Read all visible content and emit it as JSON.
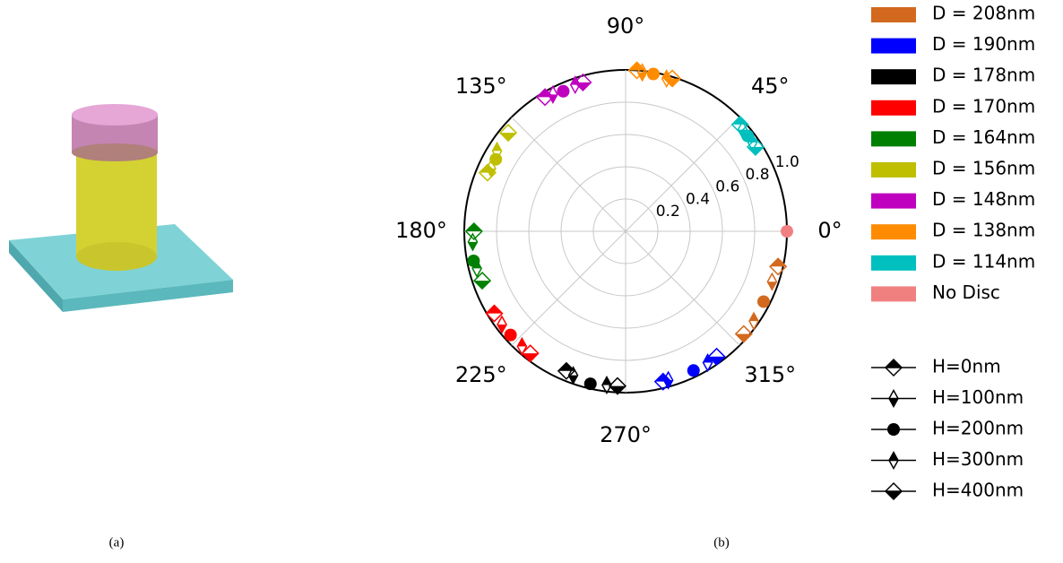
{
  "captions": {
    "a": "(a)",
    "b": "(b)"
  },
  "chart_data": {
    "type": "polar-scatter",
    "rlim": [
      0,
      1
    ],
    "rticks": [
      0.2,
      0.4,
      0.6,
      0.8,
      {
        "value": 1,
        "label": "1.0"
      }
    ],
    "thetaticks": [
      {
        "value": 0,
        "label": "0°"
      },
      {
        "value": 45,
        "label": "45°"
      },
      {
        "value": 90,
        "label": "90°"
      },
      {
        "value": 135,
        "label": "135°"
      },
      {
        "value": 180,
        "label": "180°"
      },
      {
        "value": 225,
        "label": "225°"
      },
      {
        "value": 270,
        "label": "270°"
      },
      {
        "value": 315,
        "label": "315°"
      }
    ],
    "grid": true,
    "marker_legend": [
      "H=0nm",
      "H=100nm",
      "H=200nm",
      "H=300nm",
      "H=400nm"
    ],
    "series": [
      {
        "name": "D = 208nm",
        "color": "#d2691e",
        "theta": [
          347,
          341,
          333,
          325,
          319
        ],
        "values": [
          0.97,
          0.96,
          0.96,
          0.97,
          0.97
        ]
      },
      {
        "name": "D = 190nm",
        "color": "#0000ff",
        "theta": [
          284,
          286,
          296,
          302,
          306
        ],
        "values": [
          0.96,
          0.96,
          0.96,
          0.96,
          0.96
        ]
      },
      {
        "name": "D = 178nm",
        "color": "#000000",
        "theta": [
          247,
          250,
          257,
          263,
          267
        ],
        "values": [
          0.94,
          0.95,
          0.97,
          0.96,
          0.96
        ]
      },
      {
        "name": "D = 170nm",
        "color": "#ff0000",
        "theta": [
          212,
          217,
          222,
          228,
          232
        ],
        "values": [
          0.96,
          0.96,
          0.96,
          0.96,
          0.96
        ]
      },
      {
        "name": "D = 164nm",
        "color": "#008000",
        "theta": [
          180,
          184,
          191,
          194,
          199
        ],
        "values": [
          0.94,
          0.95,
          0.96,
          0.95,
          0.94
        ]
      },
      {
        "name": "D = 156nm",
        "color": "#bfbf00",
        "theta": [
          157,
          155,
          151,
          148,
          140
        ],
        "values": [
          0.93,
          0.92,
          0.92,
          0.94,
          0.95
        ]
      },
      {
        "name": "D = 148nm",
        "color": "#bf00bf",
        "theta": [
          121,
          118,
          114,
          109,
          106
        ],
        "values": [
          0.97,
          0.96,
          0.95,
          0.96,
          0.96
        ]
      },
      {
        "name": "D = 138nm",
        "color": "#ff8c00",
        "theta": [
          86,
          84,
          80,
          75,
          73
        ],
        "values": [
          1,
          0.99,
          0.99,
          0.98,
          0.99
        ]
      },
      {
        "name": "D = 114nm",
        "color": "#00bfbf",
        "theta": [
          43,
          41,
          38,
          35,
          33
        ],
        "values": [
          0.97,
          0.96,
          0.96,
          0.96,
          0.96
        ]
      },
      {
        "name": "No Disc",
        "color": "#f08080",
        "theta": [
          0
        ],
        "values": [
          1
        ]
      }
    ]
  }
}
